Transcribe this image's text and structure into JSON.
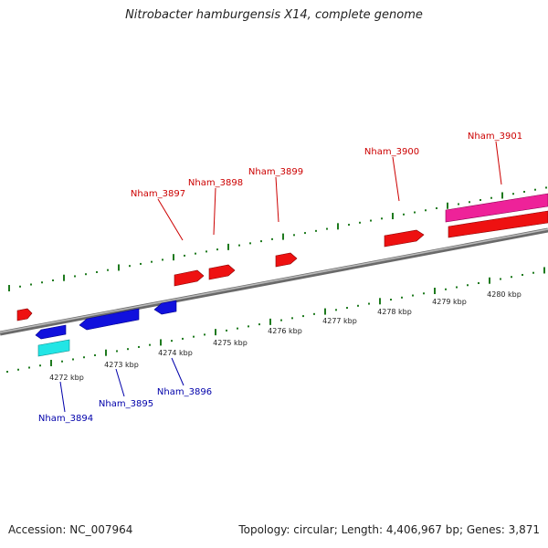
{
  "title": "Nitrobacter hamburgensis X14, complete genome",
  "footer": {
    "accession_label": "Accession:",
    "accession": "NC_007964",
    "topology_label": "Topology:",
    "topology": "circular",
    "length_label": "Length:",
    "length": "4,406,967 bp",
    "genes_label": "Genes:",
    "genes": "3,871"
  },
  "scale": {
    "unit": "kbp",
    "labels": [
      "4272 kbp",
      "4273 kbp",
      "4274 kbp",
      "4275 kbp",
      "4276 kbp",
      "4277 kbp",
      "4278 kbp",
      "4279 kbp",
      "4280 kbp"
    ]
  },
  "colors": {
    "forward_gene": "#ee1111",
    "reverse_gene": "#1111dd",
    "rna_gene": "#22e5e5",
    "pseudo_gene": "#ee2299",
    "backbone": "#888888",
    "tick": "#1e7a1e",
    "forward_label": "#cc0000",
    "reverse_label": "#0000aa"
  },
  "genes_forward_labeled": [
    "Nham_3897",
    "Nham_3898",
    "Nham_3899",
    "Nham_3900",
    "Nham_3901"
  ],
  "genes_reverse_labeled": [
    "Nham_3894",
    "Nham_3895",
    "Nham_3896"
  ]
}
